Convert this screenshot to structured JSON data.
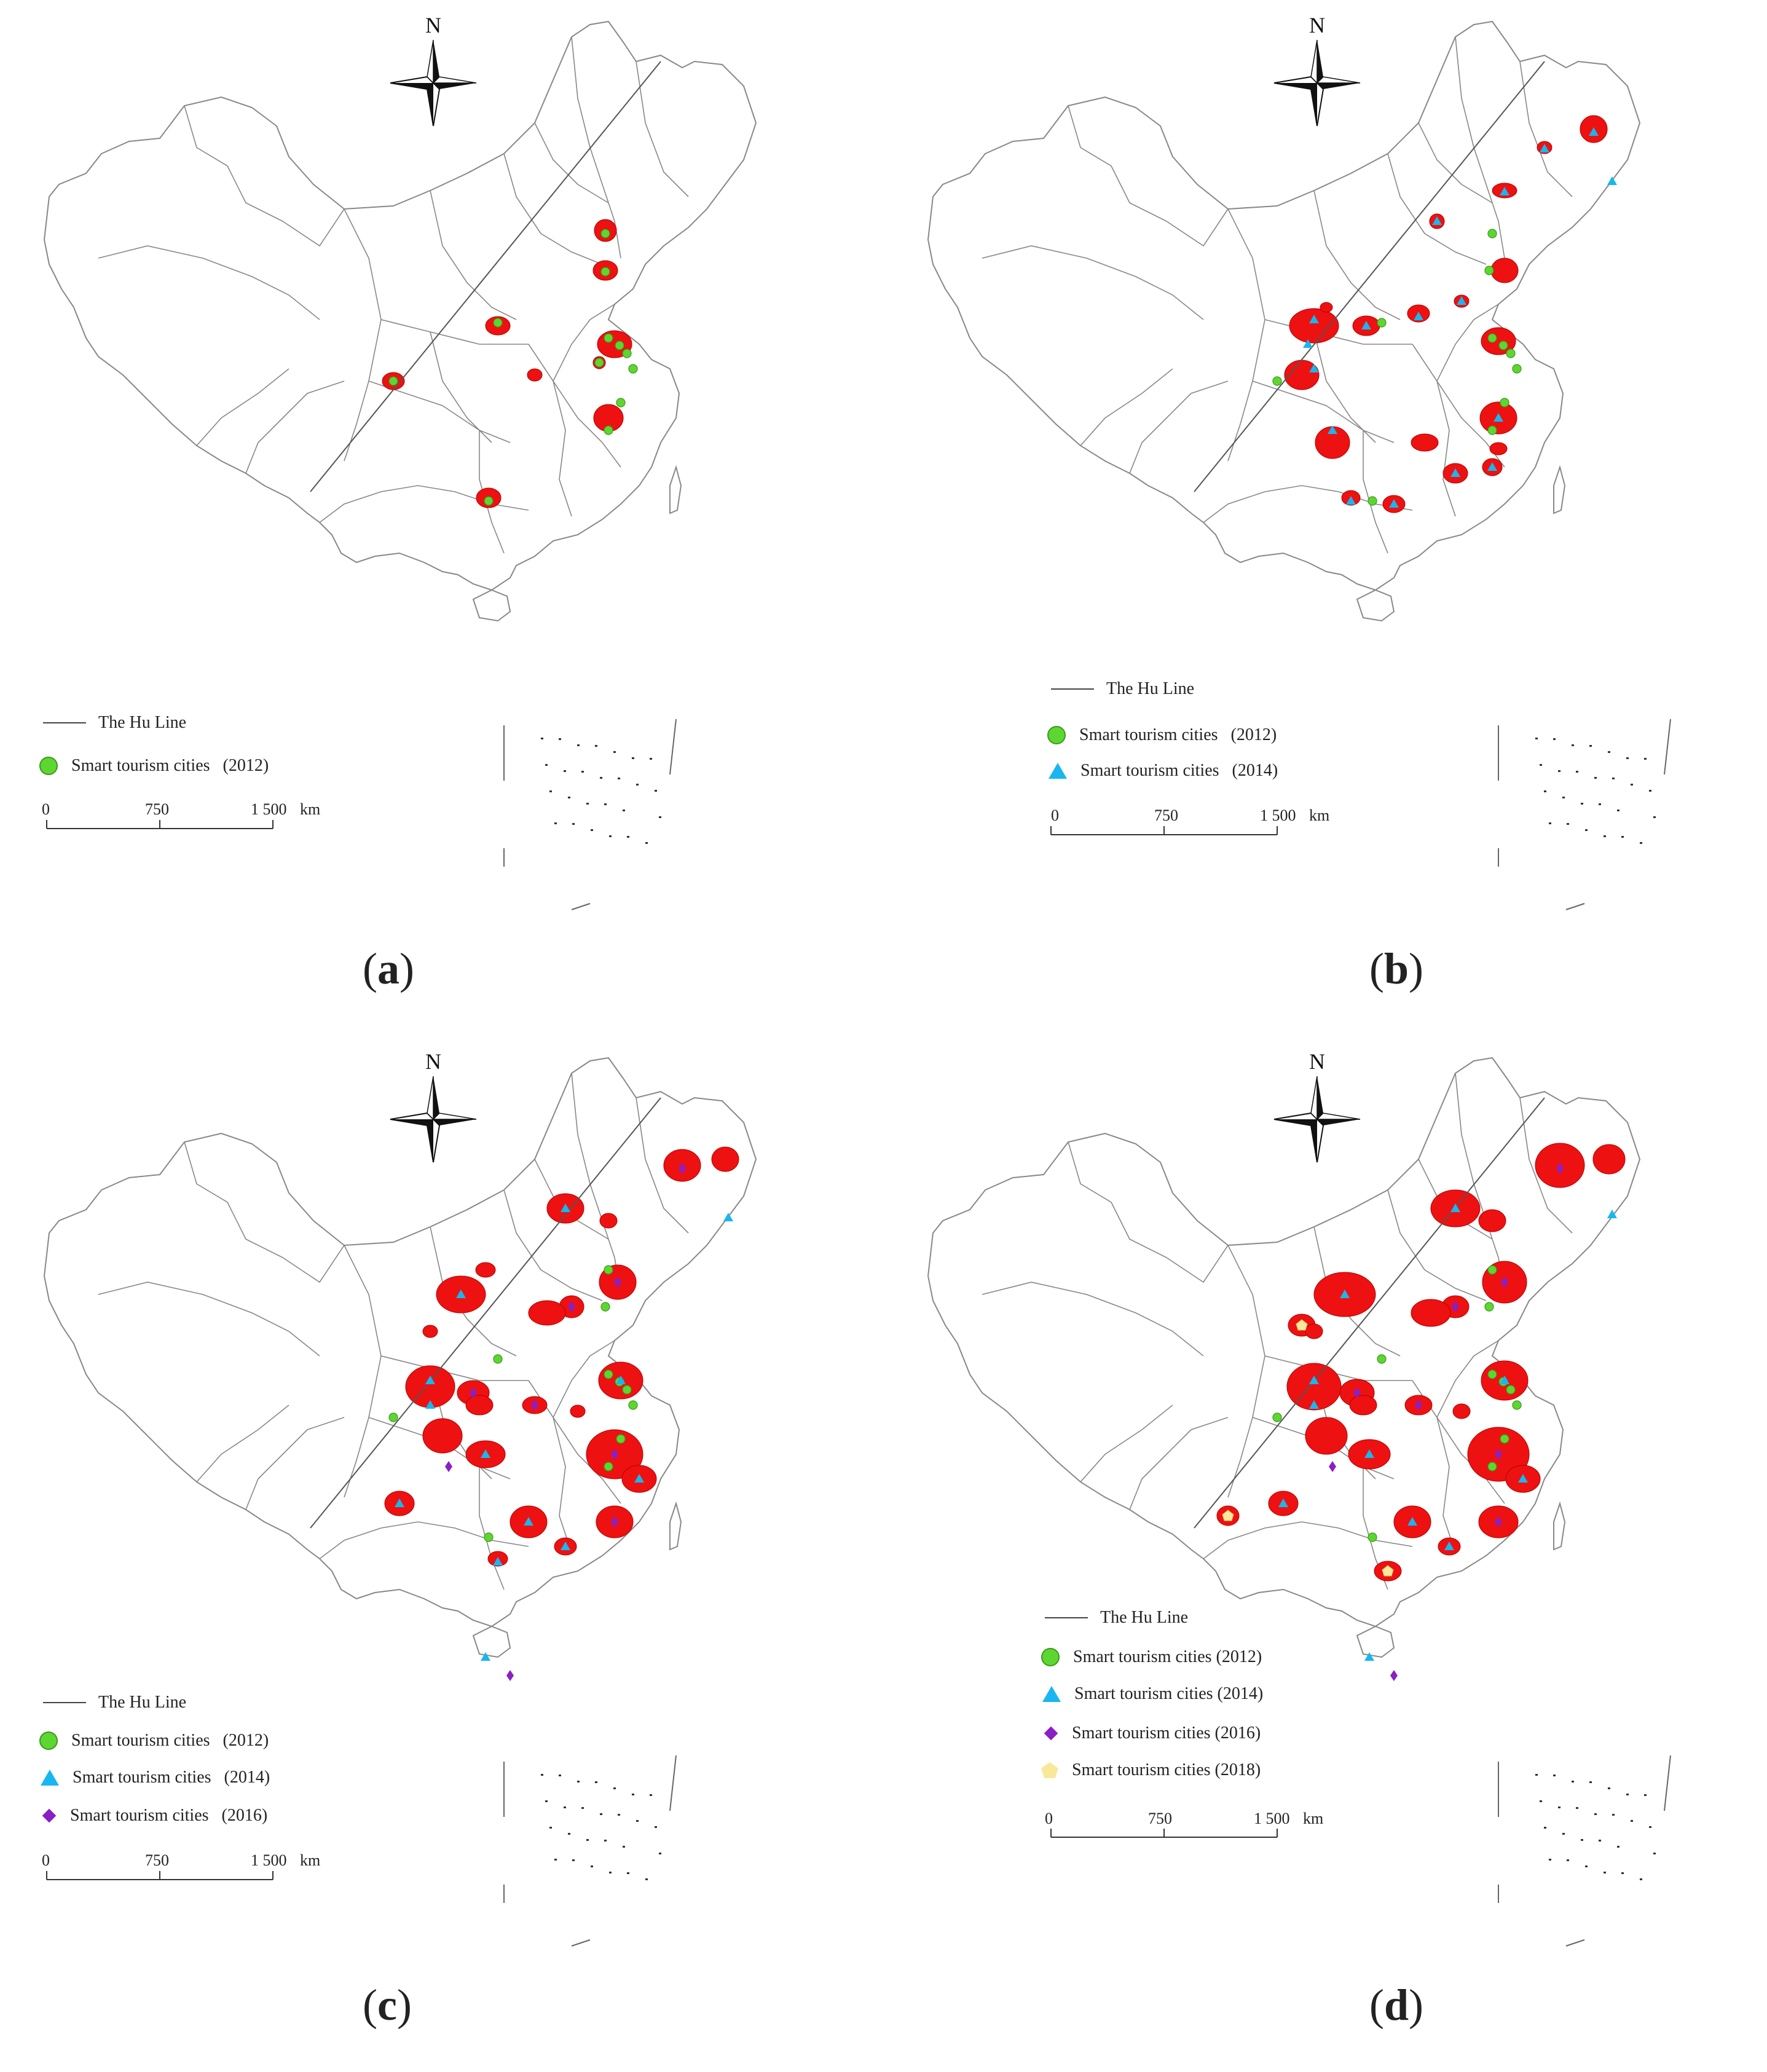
{
  "compass": {
    "north": "N"
  },
  "legend": {
    "hu_line": "The Hu Line",
    "year_2012": "Smart tourism cities   (2012)",
    "year_2014": "Smart tourism cities   (2014)",
    "year_2016": "Smart tourism cities   (2016)",
    "d_2012": "Smart tourism cities (2012)",
    "d_2014": "Smart tourism cities (2014)",
    "d_2016": "Smart tourism cities (2016)",
    "d_2018": "Smart tourism cities (2018)"
  },
  "scale": {
    "zero": "0",
    "mid": "750",
    "max": "1 500",
    "unit": "km"
  },
  "colors": {
    "region_fill": "#ee1111",
    "c2012": "#5ed631",
    "c2014": "#19b6ef",
    "c2016": "#8a1fc4",
    "c2018": "#f8e99a",
    "boundary": "#888888"
  },
  "panels": [
    {
      "label": "a",
      "years_shown": [
        "2012"
      ]
    },
    {
      "label": "b",
      "years_shown": [
        "2012",
        "2014"
      ]
    },
    {
      "label": "c",
      "years_shown": [
        "2012",
        "2014",
        "2016"
      ]
    },
    {
      "label": "d",
      "years_shown": [
        "2012",
        "2014",
        "2016",
        "2018"
      ]
    }
  ]
}
